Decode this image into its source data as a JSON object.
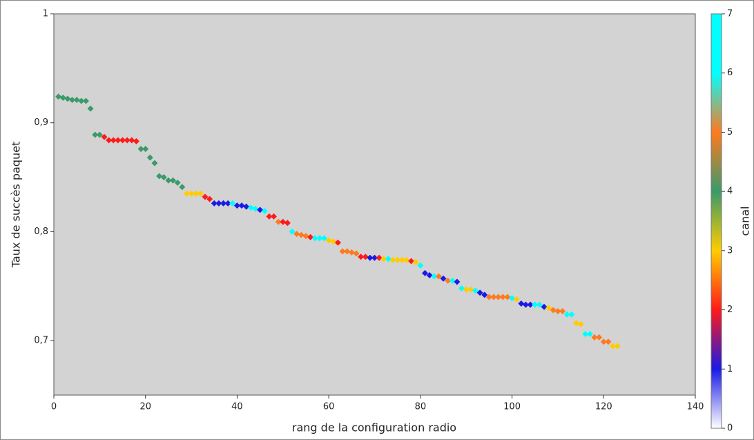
{
  "chart_data": {
    "type": "scatter",
    "x_label": "rang de la configuration radio",
    "y_label": "Taux de succès paquet",
    "color_label": "canal",
    "xlim": [
      0,
      140
    ],
    "xticks": [
      0,
      20,
      40,
      60,
      80,
      100,
      120,
      140
    ],
    "ylim": [
      0.65,
      1
    ],
    "yticks": [
      {
        "value": 0.7,
        "label": "0,7"
      },
      {
        "value": 0.8,
        "label": "0,8"
      },
      {
        "value": 0.9,
        "label": "0,9"
      },
      1
    ],
    "clim": [
      0,
      7
    ],
    "cticks": [
      0,
      1,
      2,
      3,
      4,
      5,
      6,
      7
    ],
    "colormap": [
      {
        "value": 0,
        "color": "#ffffff"
      },
      {
        "value": 1,
        "color": "#1a1ae6"
      },
      {
        "value": 2,
        "color": "#ff1a1a"
      },
      {
        "value": 3,
        "color": "#ffcc00"
      },
      {
        "value": 4,
        "color": "#3a9a6a"
      },
      {
        "value": 5,
        "color": "#ff7a1e"
      },
      {
        "value": 6,
        "color": "#00ffff"
      },
      {
        "value": 7,
        "color": "#00ffff"
      }
    ],
    "background": "#d3d3d3",
    "x": [
      1,
      2,
      3,
      4,
      5,
      6,
      7,
      8,
      9,
      10,
      11,
      12,
      13,
      14,
      15,
      16,
      17,
      18,
      19,
      20,
      21,
      22,
      23,
      24,
      25,
      26,
      27,
      28,
      29,
      30,
      31,
      32,
      33,
      34,
      35,
      36,
      37,
      38,
      39,
      40,
      41,
      42,
      43,
      44,
      45,
      46,
      47,
      48,
      49,
      50,
      51,
      52,
      53,
      54,
      55,
      56,
      57,
      58,
      59,
      60,
      61,
      62,
      63,
      64,
      65,
      66,
      67,
      68,
      69,
      70,
      71,
      72,
      73,
      74,
      75,
      76,
      77,
      78,
      79,
      80,
      81,
      82,
      83,
      84,
      85,
      86,
      87,
      88,
      89,
      90,
      91,
      92,
      93,
      94,
      95,
      96,
      97,
      98,
      99,
      100,
      101,
      102,
      103,
      104,
      105,
      106,
      107,
      108,
      109,
      110,
      111,
      112,
      113,
      114,
      115,
      116,
      117,
      118,
      119,
      120,
      121,
      122,
      123
    ],
    "values": [
      0.924,
      0.923,
      0.922,
      0.921,
      0.921,
      0.92,
      0.92,
      0.913,
      0.889,
      0.889,
      0.887,
      0.884,
      0.884,
      0.884,
      0.884,
      0.884,
      0.884,
      0.883,
      0.876,
      0.876,
      0.868,
      0.863,
      0.851,
      0.85,
      0.847,
      0.847,
      0.845,
      0.841,
      0.835,
      0.835,
      0.835,
      0.835,
      0.832,
      0.83,
      0.826,
      0.826,
      0.826,
      0.826,
      0.826,
      0.824,
      0.824,
      0.823,
      0.822,
      0.821,
      0.82,
      0.819,
      0.814,
      0.814,
      0.809,
      0.809,
      0.808,
      0.8,
      0.798,
      0.797,
      0.796,
      0.795,
      0.794,
      0.794,
      0.794,
      0.792,
      0.791,
      0.79,
      0.782,
      0.782,
      0.781,
      0.78,
      0.777,
      0.777,
      0.776,
      0.776,
      0.776,
      0.775,
      0.775,
      0.774,
      0.774,
      0.774,
      0.774,
      0.773,
      0.772,
      0.769,
      0.762,
      0.76,
      0.759,
      0.759,
      0.757,
      0.755,
      0.755,
      0.754,
      0.748,
      0.747,
      0.747,
      0.746,
      0.744,
      0.742,
      0.74,
      0.74,
      0.74,
      0.74,
      0.74,
      0.739,
      0.738,
      0.734,
      0.733,
      0.733,
      0.733,
      0.733,
      0.731,
      0.73,
      0.728,
      0.727,
      0.727,
      0.724,
      0.724,
      0.716,
      0.715,
      0.706,
      0.706,
      0.703,
      0.703,
      0.699,
      0.699,
      0.695,
      0.695
    ],
    "canal": [
      4,
      4,
      4,
      4,
      4,
      4,
      4,
      4,
      4,
      4,
      2,
      2,
      2,
      2,
      2,
      2,
      2,
      2,
      4,
      4,
      4,
      4,
      4,
      4,
      4,
      4,
      4,
      4,
      3,
      3,
      3,
      3,
      2,
      2,
      1,
      1,
      1,
      1,
      6,
      1,
      1,
      1,
      6,
      6,
      1,
      6,
      2,
      2,
      5,
      2,
      2,
      6,
      5,
      5,
      5,
      2,
      6,
      6,
      6,
      3,
      3,
      2,
      5,
      5,
      5,
      5,
      2,
      2,
      1,
      1,
      2,
      3,
      6,
      3,
      3,
      3,
      3,
      2,
      3,
      6,
      1,
      1,
      6,
      5,
      1,
      5,
      6,
      1,
      6,
      3,
      3,
      6,
      1,
      1,
      5,
      5,
      5,
      5,
      5,
      6,
      3,
      1,
      1,
      1,
      6,
      6,
      1,
      3,
      5,
      5,
      5,
      6,
      6,
      3,
      3,
      6,
      6,
      5,
      5,
      5,
      5,
      3,
      3
    ]
  }
}
